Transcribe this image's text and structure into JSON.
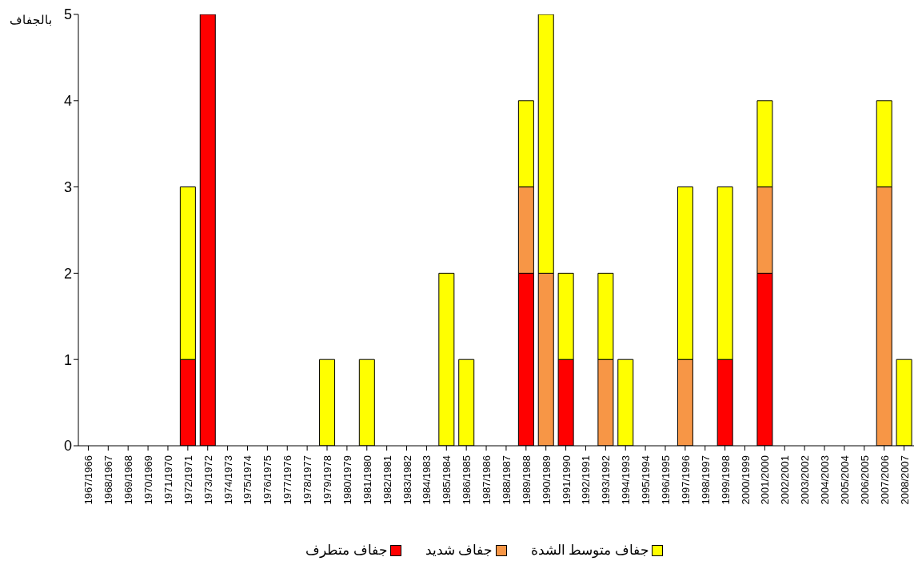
{
  "chart_data": {
    "type": "bar",
    "ylabel": "بالجفاف",
    "stacked": true,
    "legend": "bottom",
    "grid": false,
    "categories": [
      "1967/1966",
      "1968/1967",
      "1969/1968",
      "1970/1969",
      "1971/1970",
      "1972/1971",
      "1973/1972",
      "1974/1973",
      "1975/1974",
      "1976/1975",
      "1977/1976",
      "1978/1977",
      "1979/1978",
      "1980/1979",
      "1981/1980",
      "1982/1981",
      "1983/1982",
      "1984/1983",
      "1985/1984",
      "1986/1985",
      "1987/1986",
      "1988/1987",
      "1989/1988",
      "1990/1989",
      "1991/1990",
      "1992/1991",
      "1993/1992",
      "1994/1993",
      "1995/1994",
      "1996/1995",
      "1997/1996",
      "1998/1997",
      "1999/1998",
      "2000/1999",
      "2001/2000",
      "2002/2001",
      "2003/2002",
      "2004/2003",
      "2005/2004",
      "2006/2005",
      "2007/2006",
      "2008/2007"
    ],
    "series": [
      {
        "name": "جفاف متطرف",
        "color": "#ff0000",
        "values": [
          0,
          0,
          0,
          0,
          0,
          1,
          5,
          0,
          0,
          0,
          0,
          0,
          0,
          0,
          0,
          0,
          0,
          0,
          0,
          0,
          0,
          0,
          2,
          0,
          1,
          0,
          0,
          0,
          0,
          0,
          0,
          0,
          1,
          0,
          2,
          0,
          0,
          0,
          0,
          0,
          0,
          0
        ]
      },
      {
        "name": "جفاف شديد",
        "color": "#f79646",
        "values": [
          0,
          0,
          0,
          0,
          0,
          0,
          0,
          0,
          0,
          0,
          0,
          0,
          0,
          0,
          0,
          0,
          0,
          0,
          0,
          0,
          0,
          0,
          1,
          2,
          0,
          0,
          1,
          0,
          0,
          0,
          1,
          0,
          0,
          0,
          1,
          0,
          0,
          0,
          0,
          0,
          3,
          0
        ]
      },
      {
        "name": "جفاف متوسط الشدة",
        "color": "#ffff00",
        "values": [
          0,
          0,
          0,
          0,
          0,
          2,
          0,
          0,
          0,
          0,
          0,
          0,
          1,
          0,
          1,
          0,
          0,
          0,
          2,
          1,
          0,
          0,
          1,
          3,
          1,
          0,
          1,
          1,
          0,
          0,
          2,
          0,
          2,
          0,
          1,
          0,
          0,
          0,
          0,
          0,
          1,
          1
        ]
      }
    ],
    "ylim": [
      0,
      5
    ],
    "yticks": [
      0,
      1,
      2,
      3,
      4,
      5
    ]
  }
}
